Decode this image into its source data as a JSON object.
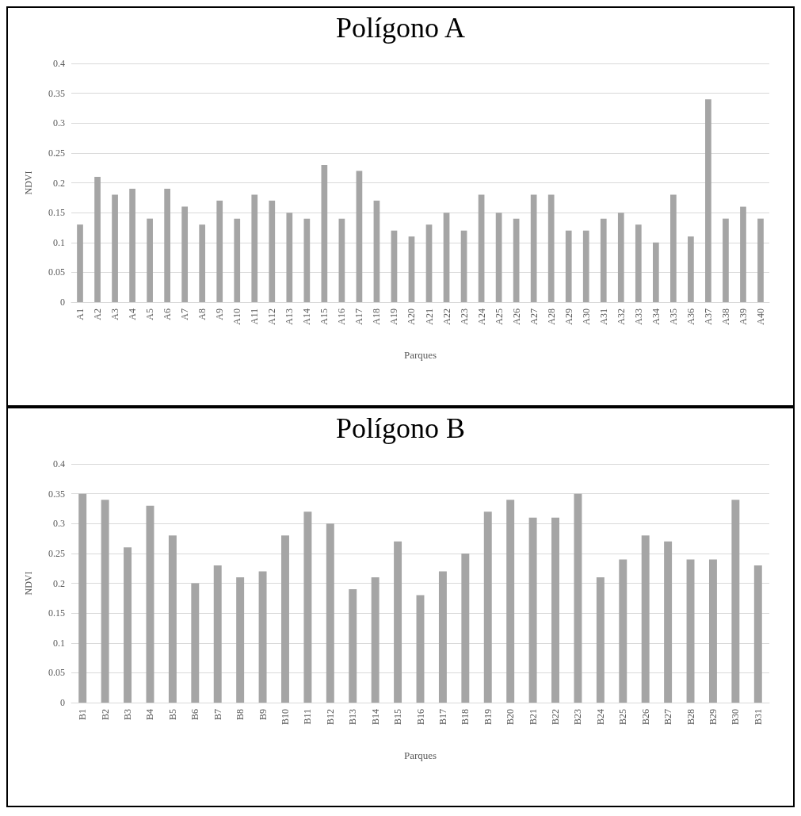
{
  "chart_data": [
    {
      "type": "bar",
      "title": "Polígono A",
      "xlabel": "Parques",
      "ylabel": "NDVI",
      "categories": [
        "A1",
        "A2",
        "A3",
        "A4",
        "A5",
        "A6",
        "A7",
        "A8",
        "A9",
        "A10",
        "A11",
        "A12",
        "A13",
        "A14",
        "A15",
        "A16",
        "A17",
        "A18",
        "A19",
        "A20",
        "A21",
        "A22",
        "A23",
        "A24",
        "A25",
        "A26",
        "A27",
        "A28",
        "A29",
        "A30",
        "A31",
        "A32",
        "A33",
        "A34",
        "A35",
        "A36",
        "A37",
        "A38",
        "A39",
        "A40"
      ],
      "values": [
        0.13,
        0.21,
        0.18,
        0.19,
        0.14,
        0.19,
        0.16,
        0.13,
        0.17,
        0.14,
        0.18,
        0.17,
        0.15,
        0.14,
        0.23,
        0.14,
        0.22,
        0.17,
        0.12,
        0.11,
        0.13,
        0.15,
        0.12,
        0.18,
        0.15,
        0.14,
        0.18,
        0.18,
        0.12,
        0.12,
        0.14,
        0.15,
        0.13,
        0.1,
        0.18,
        0.11,
        0.34,
        0.14,
        0.16,
        0.14
      ],
      "color": "#a5a5a5",
      "ylim": [
        0,
        0.4
      ],
      "yticks": [
        0,
        0.05,
        0.1,
        0.15,
        0.2,
        0.25,
        0.3,
        0.35,
        0.4
      ],
      "grid": "y"
    },
    {
      "type": "bar",
      "title": "Polígono B",
      "xlabel": "Parques",
      "ylabel": "NDVI",
      "categories": [
        "B1",
        "B2",
        "B3",
        "B4",
        "B5",
        "B6",
        "B7",
        "B8",
        "B9",
        "B10",
        "B11",
        "B12",
        "B13",
        "B14",
        "B15",
        "B16",
        "B17",
        "B18",
        "B19",
        "B20",
        "B21",
        "B22",
        "B23",
        "B24",
        "B25",
        "B26",
        "B27",
        "B28",
        "B29",
        "B30",
        "B31"
      ],
      "values": [
        0.35,
        0.34,
        0.26,
        0.33,
        0.28,
        0.2,
        0.23,
        0.21,
        0.22,
        0.28,
        0.32,
        0.3,
        0.19,
        0.21,
        0.27,
        0.18,
        0.22,
        0.25,
        0.32,
        0.34,
        0.31,
        0.31,
        0.35,
        0.21,
        0.24,
        0.28,
        0.27,
        0.24,
        0.24,
        0.34,
        0.23
      ],
      "color": "#a5a5a5",
      "ylim": [
        0,
        0.4
      ],
      "yticks": [
        0,
        0.05,
        0.1,
        0.15,
        0.2,
        0.25,
        0.3,
        0.35,
        0.4
      ],
      "grid": "y"
    }
  ]
}
